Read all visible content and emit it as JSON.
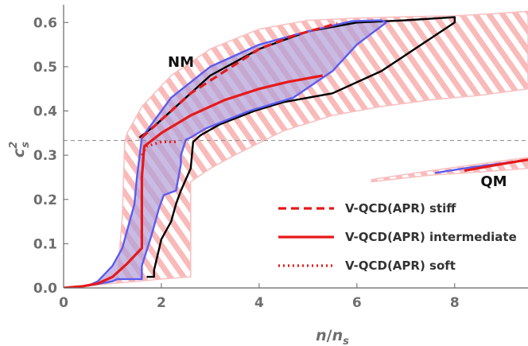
{
  "chart_data": {
    "type": "line",
    "xlabel": "n/n_s",
    "ylabel": "c_s^2",
    "xlim": [
      0,
      9.5
    ],
    "ylim": [
      0,
      0.64
    ],
    "xticks": [
      0,
      2,
      4,
      6,
      8
    ],
    "yticks": [
      0.0,
      0.1,
      0.2,
      0.3,
      0.4,
      0.5,
      0.6
    ],
    "xtick_labels": [
      "0",
      "2",
      "4",
      "6",
      "8"
    ],
    "ytick_labels": [
      "0.0",
      "0.1",
      "0.2",
      "0.3",
      "0.4",
      "0.5",
      "0.6"
    ],
    "reference_line_y": 0.3333,
    "grid": false,
    "legend_position": "lower-right",
    "region_labels": [
      {
        "text": "NM",
        "x": 2.4,
        "y": 0.5
      },
      {
        "text": "QM",
        "x": 8.8,
        "y": 0.23
      }
    ],
    "bands": [
      {
        "name": "pink-hatched-NM",
        "color": "#f4a0a0",
        "polygon": [
          [
            0,
            0
          ],
          [
            0.5,
            0.005
          ],
          [
            0.8,
            0.01
          ],
          [
            1.1,
            0.025
          ],
          [
            1.2,
            0.16
          ],
          [
            1.25,
            0.33
          ],
          [
            1.3,
            0.35
          ],
          [
            1.6,
            0.41
          ],
          [
            2.2,
            0.48
          ],
          [
            3,
            0.54
          ],
          [
            4,
            0.585
          ],
          [
            5,
            0.605
          ],
          [
            6,
            0.61
          ],
          [
            7,
            0.613
          ],
          [
            8,
            0.615
          ],
          [
            8.8,
            0.62
          ],
          [
            9.5,
            0.625
          ],
          [
            9.5,
            0.45
          ],
          [
            8.5,
            0.435
          ],
          [
            7.5,
            0.425
          ],
          [
            6.5,
            0.41
          ],
          [
            5.5,
            0.39
          ],
          [
            4.5,
            0.355
          ],
          [
            3.5,
            0.3
          ],
          [
            3,
            0.27
          ],
          [
            2.6,
            0.24
          ],
          [
            2.6,
            0.025
          ],
          [
            2,
            0.02
          ],
          [
            1.5,
            0.015
          ],
          [
            1,
            0.01
          ],
          [
            0.5,
            0.005
          ],
          [
            0,
            0
          ]
        ]
      },
      {
        "name": "pink-hatched-QM",
        "color": "#f4a0a0",
        "polygon": [
          [
            6.3,
            0.245
          ],
          [
            7.5,
            0.265
          ],
          [
            8.5,
            0.28
          ],
          [
            9.5,
            0.295
          ],
          [
            9.5,
            0.27
          ],
          [
            8.5,
            0.262
          ],
          [
            7.5,
            0.255
          ],
          [
            6.3,
            0.24
          ]
        ]
      }
    ],
    "series": [
      {
        "name": "blue-envelope",
        "color": "#5b5bf0",
        "style": "solid",
        "fill": "#b0a0d8",
        "points": [
          [
            0.5,
            0.005
          ],
          [
            0.7,
            0.015
          ],
          [
            1.0,
            0.05
          ],
          [
            1.2,
            0.09
          ],
          [
            1.45,
            0.19
          ],
          [
            1.5,
            0.25
          ],
          [
            1.6,
            0.34
          ],
          [
            1.8,
            0.37
          ],
          [
            2.2,
            0.43
          ],
          [
            3,
            0.5
          ],
          [
            4,
            0.55
          ],
          [
            5,
            0.58
          ],
          [
            5.9,
            0.603
          ],
          [
            6.5,
            0.605
          ],
          [
            6.6,
            0.6
          ],
          [
            6.0,
            0.55
          ],
          [
            5.5,
            0.49
          ],
          [
            4.7,
            0.43
          ],
          [
            3.8,
            0.4
          ],
          [
            2.9,
            0.36
          ],
          [
            2.6,
            0.34
          ],
          [
            2.5,
            0.335
          ],
          [
            2.4,
            0.3
          ],
          [
            2.4,
            0.28
          ],
          [
            2.3,
            0.22
          ],
          [
            2.05,
            0.21
          ],
          [
            1.95,
            0.18
          ],
          [
            1.8,
            0.12
          ],
          [
            1.6,
            0.05
          ],
          [
            1.6,
            0.02
          ],
          [
            1.1,
            0.02
          ],
          [
            1.0,
            0.015
          ],
          [
            0.5,
            0.005
          ]
        ]
      },
      {
        "name": "black-envelope",
        "color": "#000000",
        "style": "solid",
        "points": [
          [
            1.55,
            0.34
          ],
          [
            1.9,
            0.37
          ],
          [
            2.5,
            0.43
          ],
          [
            3,
            0.48
          ],
          [
            4,
            0.54
          ],
          [
            5,
            0.58
          ],
          [
            6,
            0.6
          ],
          [
            7,
            0.605
          ],
          [
            8,
            0.612
          ],
          [
            8.0,
            0.6
          ],
          [
            6.5,
            0.49
          ],
          [
            5.5,
            0.44
          ],
          [
            4.5,
            0.42
          ],
          [
            3.9,
            0.4
          ],
          [
            3.2,
            0.37
          ],
          [
            2.8,
            0.345
          ],
          [
            2.65,
            0.33
          ],
          [
            2.6,
            0.27
          ],
          [
            2.4,
            0.22
          ],
          [
            2.3,
            0.19
          ],
          [
            2.2,
            0.15
          ],
          [
            2.0,
            0.11
          ],
          [
            1.85,
            0.04
          ],
          [
            1.85,
            0.025
          ],
          [
            1.7,
            0.025
          ]
        ]
      },
      {
        "name": "V-QCD(APR) stiff",
        "color": "#e61919",
        "style": "dashed",
        "points": [
          [
            1.6,
            0.34
          ],
          [
            2.0,
            0.38
          ],
          [
            2.6,
            0.44
          ],
          [
            3.3,
            0.49
          ],
          [
            4,
            0.54
          ],
          [
            4.7,
            0.57
          ],
          [
            5.6,
            0.598
          ]
        ]
      },
      {
        "name": "V-QCD(APR) intermediate",
        "color": "#e61919",
        "style": "solid",
        "points": [
          [
            0,
            0
          ],
          [
            0.4,
            0.004
          ],
          [
            0.7,
            0.01
          ],
          [
            1.0,
            0.025
          ],
          [
            1.3,
            0.055
          ],
          [
            1.6,
            0.09
          ],
          [
            1.6,
            0.25
          ],
          [
            1.65,
            0.32
          ],
          [
            2.0,
            0.35
          ],
          [
            2.6,
            0.39
          ],
          [
            3.3,
            0.425
          ],
          [
            4,
            0.45
          ],
          [
            4.6,
            0.466
          ],
          [
            5.3,
            0.48
          ]
        ]
      },
      {
        "name": "V-QCD(APR) soft",
        "color": "#e61919",
        "style": "dotted",
        "points": [
          [
            1.6,
            0.3
          ],
          [
            1.7,
            0.32
          ],
          [
            2.0,
            0.33
          ],
          [
            2.3,
            0.33
          ]
        ]
      },
      {
        "name": "QM-blue",
        "color": "#5b5bf0",
        "style": "solid",
        "points": [
          [
            7.6,
            0.26
          ],
          [
            8.3,
            0.272
          ],
          [
            9.0,
            0.282
          ],
          [
            9.5,
            0.29
          ]
        ]
      },
      {
        "name": "QM-red",
        "color": "#e61919",
        "style": "solid",
        "points": [
          [
            8.2,
            0.265
          ],
          [
            8.8,
            0.277
          ],
          [
            9.5,
            0.29
          ]
        ]
      }
    ],
    "legend": [
      {
        "label": "V-QCD(APR) stiff",
        "style": "dashed",
        "color": "#e61919"
      },
      {
        "label": "V-QCD(APR) intermediate",
        "style": "solid",
        "color": "#e61919"
      },
      {
        "label": "V-QCD(APR) soft",
        "style": "dotted",
        "color": "#e61919"
      }
    ]
  },
  "axis": {
    "x_label_main": "n",
    "x_label_sub": "s",
    "y_label_main": "c",
    "y_label_sup": "2",
    "y_label_sub": "s"
  }
}
